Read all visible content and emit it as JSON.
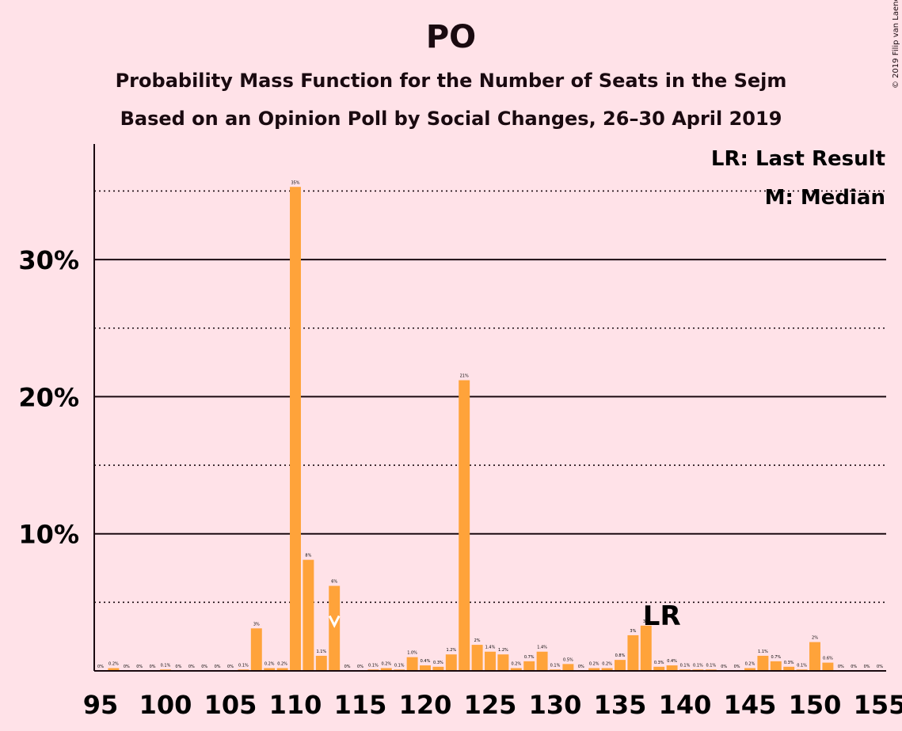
{
  "title": "PO",
  "subtitle_1": "Probability Mass Function for the Number of Seats in the Sejm",
  "subtitle_2": "Based on an Opinion Poll by Social Changes, 26–30 April 2019",
  "copyright": "© 2019 Filip van Laenen",
  "legend": {
    "last_result": "LR: Last Result",
    "median": "M: Median"
  },
  "colors": {
    "background": "#FFE2E8",
    "bar": "#FFA33A",
    "text": "#1a0a10"
  },
  "chart_data": {
    "type": "bar",
    "x": [
      95,
      96,
      97,
      98,
      99,
      100,
      101,
      102,
      103,
      104,
      105,
      106,
      107,
      108,
      109,
      110,
      111,
      112,
      113,
      114,
      115,
      116,
      117,
      118,
      119,
      120,
      121,
      122,
      123,
      124,
      125,
      126,
      127,
      128,
      129,
      130,
      131,
      132,
      133,
      134,
      135,
      136,
      137,
      138,
      139,
      140,
      141,
      142,
      143,
      144,
      145,
      146,
      147,
      148,
      149,
      150,
      151,
      152,
      153,
      154,
      155
    ],
    "values": [
      0,
      0.2,
      0,
      0,
      0,
      0.1,
      0,
      0,
      0,
      0,
      0,
      0.1,
      3.1,
      0.2,
      0.2,
      35.3,
      8.1,
      1.1,
      6.2,
      0,
      0,
      0.1,
      0.2,
      0.1,
      1.0,
      0.4,
      0.3,
      1.2,
      21.2,
      1.9,
      1.4,
      1.2,
      0.2,
      0.7,
      1.4,
      0.1,
      0.5,
      0,
      0.2,
      0.2,
      0.8,
      2.6,
      3.3,
      0.3,
      0.4,
      0.1,
      0.1,
      0.1,
      0,
      0,
      0.2,
      1.1,
      0.7,
      0.3,
      0.1,
      2.1,
      0.6,
      0,
      0,
      0,
      0
    ],
    "labels": [
      "0%",
      "0.2%",
      "0%",
      "0%",
      "0%",
      "0.1%",
      "0%",
      "0%",
      "0%",
      "0%",
      "0%",
      "0.1%",
      "3%",
      "0.2%",
      "0.2%",
      "35%",
      "8%",
      "1.1%",
      "6%",
      "0%",
      "0%",
      "0.1%",
      "0.2%",
      "0.1%",
      "1.0%",
      "0.4%",
      "0.3%",
      "1.2%",
      "21%",
      "2%",
      "1.4%",
      "1.2%",
      "0.2%",
      "0.7%",
      "1.4%",
      "0.1%",
      "0.5%",
      "0%",
      "0.2%",
      "0.2%",
      "0.8%",
      "3%",
      "3%",
      "0.3%",
      "0.4%",
      "0.1%",
      "0.1%",
      "0.1%",
      "0%",
      "0%",
      "0.2%",
      "1.1%",
      "0.7%",
      "0.3%",
      "0.1%",
      "2%",
      "0.6%",
      "0%",
      "0%",
      "0%",
      "0%"
    ],
    "x_ticks": [
      95,
      100,
      105,
      110,
      115,
      120,
      125,
      130,
      135,
      140,
      145,
      150,
      155
    ],
    "y_ticks": [
      10,
      20,
      30
    ],
    "y_tick_labels": [
      "10%",
      "20%",
      "30%"
    ],
    "y_dotted_lines": [
      5,
      15,
      25,
      35
    ],
    "ylim": [
      0,
      38
    ],
    "median_seat": 113,
    "last_result_seat": 137,
    "last_result_label": "LR",
    "grid": true,
    "legend_position": "top-right"
  }
}
